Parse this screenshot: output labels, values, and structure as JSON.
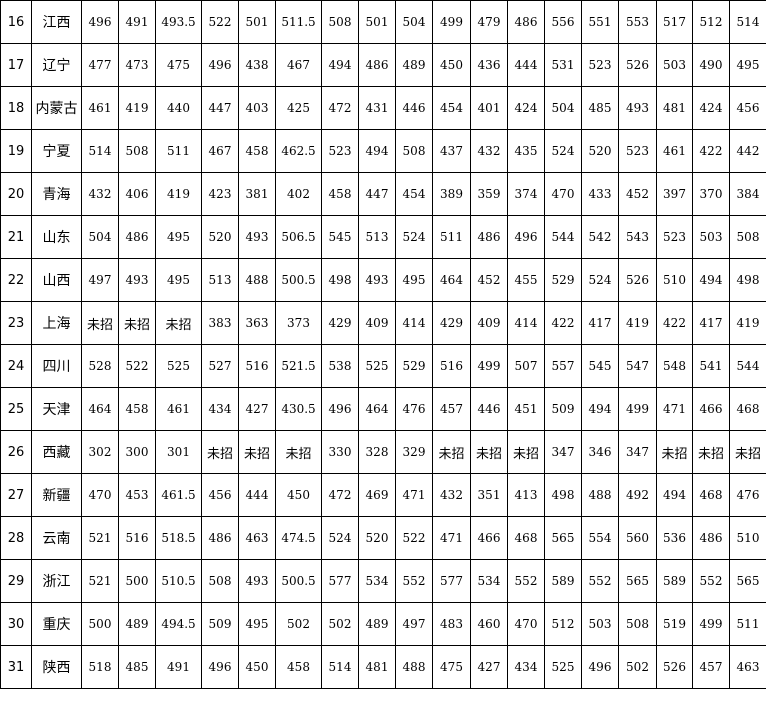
{
  "rows": [
    {
      "index": "16",
      "province": "江西",
      "values": [
        "496",
        "491",
        "493.5",
        "522",
        "501",
        "511.5",
        "508",
        "501",
        "504",
        "499",
        "479",
        "486",
        "556",
        "551",
        "553",
        "517",
        "512",
        "514"
      ]
    },
    {
      "index": "17",
      "province": "辽宁",
      "values": [
        "477",
        "473",
        "475",
        "496",
        "438",
        "467",
        "494",
        "486",
        "489",
        "450",
        "436",
        "444",
        "531",
        "523",
        "526",
        "503",
        "490",
        "495"
      ]
    },
    {
      "index": "18",
      "province": "内蒙古",
      "values": [
        "461",
        "419",
        "440",
        "447",
        "403",
        "425",
        "472",
        "431",
        "446",
        "454",
        "401",
        "424",
        "504",
        "485",
        "493",
        "481",
        "424",
        "456"
      ]
    },
    {
      "index": "19",
      "province": "宁夏",
      "values": [
        "514",
        "508",
        "511",
        "467",
        "458",
        "462.5",
        "523",
        "494",
        "508",
        "437",
        "432",
        "435",
        "524",
        "520",
        "523",
        "461",
        "422",
        "442"
      ]
    },
    {
      "index": "20",
      "province": "青海",
      "values": [
        "432",
        "406",
        "419",
        "423",
        "381",
        "402",
        "458",
        "447",
        "454",
        "389",
        "359",
        "374",
        "470",
        "433",
        "452",
        "397",
        "370",
        "384"
      ]
    },
    {
      "index": "21",
      "province": "山东",
      "values": [
        "504",
        "486",
        "495",
        "520",
        "493",
        "506.5",
        "545",
        "513",
        "524",
        "511",
        "486",
        "496",
        "544",
        "542",
        "543",
        "523",
        "503",
        "508"
      ]
    },
    {
      "index": "22",
      "province": "山西",
      "values": [
        "497",
        "493",
        "495",
        "513",
        "488",
        "500.5",
        "498",
        "493",
        "495",
        "464",
        "452",
        "455",
        "529",
        "524",
        "526",
        "510",
        "494",
        "498"
      ]
    },
    {
      "index": "23",
      "province": "上海",
      "values": [
        "未招",
        "未招",
        "未招",
        "383",
        "363",
        "373",
        "429",
        "409",
        "414",
        "429",
        "409",
        "414",
        "422",
        "417",
        "419",
        "422",
        "417",
        "419"
      ]
    },
    {
      "index": "24",
      "province": "四川",
      "values": [
        "528",
        "522",
        "525",
        "527",
        "516",
        "521.5",
        "538",
        "525",
        "529",
        "516",
        "499",
        "507",
        "557",
        "545",
        "547",
        "548",
        "541",
        "544"
      ]
    },
    {
      "index": "25",
      "province": "天津",
      "values": [
        "464",
        "458",
        "461",
        "434",
        "427",
        "430.5",
        "496",
        "464",
        "476",
        "457",
        "446",
        "451",
        "509",
        "494",
        "499",
        "471",
        "466",
        "468"
      ]
    },
    {
      "index": "26",
      "province": "西藏",
      "values": [
        "302",
        "300",
        "301",
        "未招",
        "未招",
        "未招",
        "330",
        "328",
        "329",
        "未招",
        "未招",
        "未招",
        "347",
        "346",
        "347",
        "未招",
        "未招",
        "未招"
      ]
    },
    {
      "index": "27",
      "province": "新疆",
      "values": [
        "470",
        "453",
        "461.5",
        "456",
        "444",
        "450",
        "472",
        "469",
        "471",
        "432",
        "351",
        "413",
        "498",
        "488",
        "492",
        "494",
        "468",
        "476"
      ]
    },
    {
      "index": "28",
      "province": "云南",
      "values": [
        "521",
        "516",
        "518.5",
        "486",
        "463",
        "474.5",
        "524",
        "520",
        "522",
        "471",
        "466",
        "468",
        "565",
        "554",
        "560",
        "536",
        "486",
        "510"
      ]
    },
    {
      "index": "29",
      "province": "浙江",
      "values": [
        "521",
        "500",
        "510.5",
        "508",
        "493",
        "500.5",
        "577",
        "534",
        "552",
        "577",
        "534",
        "552",
        "589",
        "552",
        "565",
        "589",
        "552",
        "565"
      ]
    },
    {
      "index": "30",
      "province": "重庆",
      "values": [
        "500",
        "489",
        "494.5",
        "509",
        "495",
        "502",
        "502",
        "489",
        "497",
        "483",
        "460",
        "470",
        "512",
        "503",
        "508",
        "519",
        "499",
        "511"
      ]
    },
    {
      "index": "31",
      "province": "陕西",
      "values": [
        "518",
        "485",
        "491",
        "496",
        "450",
        "458",
        "514",
        "481",
        "488",
        "475",
        "427",
        "434",
        "525",
        "496",
        "502",
        "526",
        "457",
        "463"
      ]
    }
  ]
}
